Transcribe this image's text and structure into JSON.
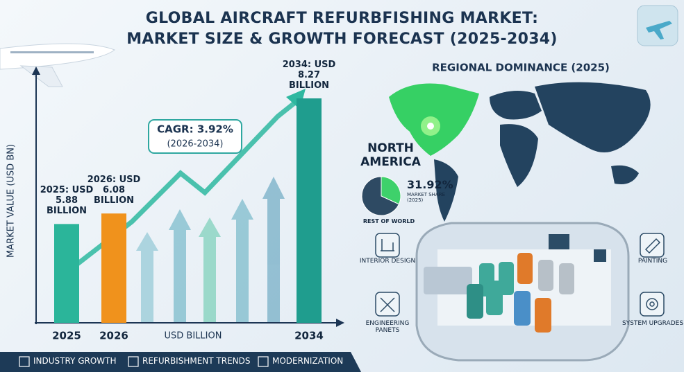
{
  "title": [
    "GLOBAL AIRCRAFT REFURBFISHING MARKET:",
    "MARKET SIZE & GROWTH FORECAST (2025-2034)"
  ],
  "chart_data": [
    {
      "type": "bar",
      "ylabel": "MARKET VALUE (USD BN)",
      "xlabel": "USD BILLION",
      "categories": [
        "2025",
        "2026",
        "2034"
      ],
      "values": [
        5.88,
        6.08,
        8.27
      ],
      "value_labels": [
        "2025: USD 5.88 BILLION",
        "2026: USD 6.08 BILLION",
        "2034: USD 8.27 BILLION"
      ],
      "colors": [
        "#2bb59a",
        "#f0921c",
        "#1f9d8e"
      ],
      "ylim": [
        4,
        8.6
      ],
      "annotation": [
        "CAGR: 3.92%",
        "(2026-2034)"
      ]
    },
    {
      "type": "pie",
      "title": "REGIONAL DOMINANCE (2025)",
      "subtitle": "MARKET SHARE (2025)",
      "categories": [
        "NORTH AMERICA",
        "REST OF WORLD"
      ],
      "values": [
        31.92,
        68.08
      ],
      "value_labels": [
        "31.92%",
        null
      ],
      "colors": [
        "#3ed16b",
        "#2e4a63"
      ]
    }
  ],
  "features": [
    "INTERIOR DESIGN",
    "ENGINEERING PANETS",
    "PAINTING",
    "SYSTEM UPGRADES"
  ],
  "footer": [
    "INDUSTRY GROWTH",
    "REFURBISHMENT TRENDS",
    "MODERNIZATION"
  ]
}
